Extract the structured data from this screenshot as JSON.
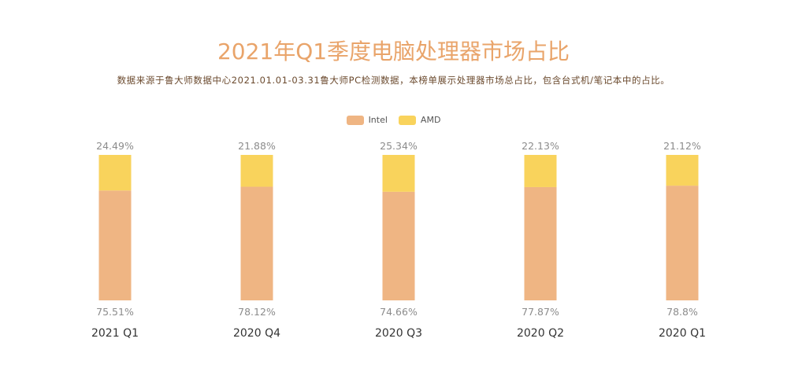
{
  "chart_data": {
    "type": "bar",
    "stacked": true,
    "title": "2021年Q1季度电脑处理器市场占比",
    "subtitle": "数据来源于鲁大师数据中心2021.01.01-03.31鲁大师PC检测数据，本榜单展示处理器市场总占比，包含台式机/笔记本中的占比。",
    "categories": [
      "2021 Q1",
      "2020 Q4",
      "2020 Q3",
      "2020 Q2",
      "2020 Q1"
    ],
    "series": [
      {
        "name": "Intel",
        "color": "#efb583",
        "values": [
          75.51,
          78.12,
          74.66,
          77.87,
          78.8
        ],
        "labels": [
          "75.51%",
          "78.12%",
          "74.66%",
          "77.87%",
          "78.8%"
        ]
      },
      {
        "name": "AMD",
        "color": "#f9d35c",
        "values": [
          24.49,
          21.88,
          25.34,
          22.13,
          21.12
        ],
        "labels": [
          "24.49%",
          "21.88%",
          "25.34%",
          "22.13%",
          "21.12%"
        ]
      }
    ],
    "legend": "top-center",
    "grid": false,
    "ylim": [
      0,
      100
    ]
  }
}
